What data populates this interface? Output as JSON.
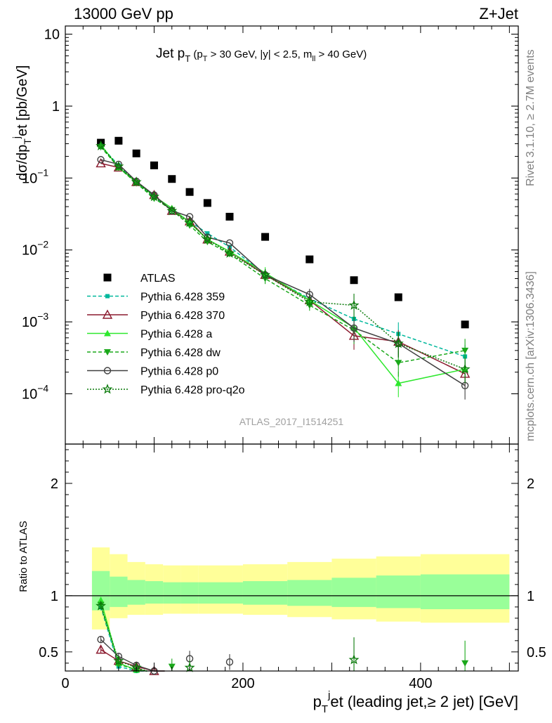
{
  "header": {
    "left": "13000 GeV pp",
    "right": "Z+Jet"
  },
  "side": {
    "rivet": "Rivet 3.1.10, ≥ 2.7M events",
    "mcplots": "mcplots.cern.ch [arXiv:1306.3436]"
  },
  "colors": {
    "atlas": "#000000",
    "p359": "#00b89c",
    "p370": "#8b1a2e",
    "pa": "#2ee82e",
    "pdw": "#1aa81a",
    "pp0": "#404040",
    "pq2o": "#0a7a0a",
    "band_inner": "#99ff99",
    "band_outer": "#ffff99"
  },
  "chart_data": [
    {
      "type": "line",
      "title": "Jet p_T (p_T > 30 GeV, |y| < 2.5, m_ll > 40 GeV)",
      "title_parts": {
        "main": "Jet p",
        "main_sub": "T",
        "open": " (p",
        "cut_sub": "T",
        "rest": " > 30 GeV, |y| < 2.5, m",
        "mll_sub": "ll",
        "end": " > 40 GeV)"
      },
      "ylabel": "dσ/dp_T^j et [pb/GeV]",
      "ylabel_parts": {
        "a": "dσ/dp",
        "sub": "T",
        "sup": "j",
        "b": "et [pb/GeV]"
      },
      "yscale": "log",
      "ylim": [
        2e-05,
        13
      ],
      "xlim": [
        0,
        510
      ],
      "y_ticks": [
        "10",
        "1",
        "10^-1",
        "10^-2",
        "10^-3",
        "10^-4"
      ],
      "y_tick_parts": [
        {
          "base": "10",
          "exp": ""
        },
        {
          "base": "1",
          "exp": ""
        },
        {
          "base": "10",
          "exp": "−1"
        },
        {
          "base": "10",
          "exp": "−2"
        },
        {
          "base": "10",
          "exp": "−3"
        },
        {
          "base": "10",
          "exp": "−4"
        }
      ],
      "watermark": "ATLAS_2017_I1514251",
      "legend_position": "lower-left",
      "x": [
        40,
        60,
        80,
        100,
        120,
        140,
        160,
        185,
        225,
        275,
        325,
        375,
        450
      ],
      "series": [
        {
          "name": "ATLAS",
          "key": "atlas",
          "marker": "square",
          "values": [
            0.31,
            0.33,
            0.22,
            0.15,
            0.097,
            0.064,
            0.045,
            0.029,
            0.0152,
            0.0074,
            0.0038,
            0.0022,
            0.00092
          ]
        },
        {
          "name": "Pythia 6.428 359",
          "key": "p359",
          "marker": "square-small",
          "dash": "5,3",
          "values": [
            0.28,
            0.15,
            0.087,
            0.055,
            0.036,
            0.025,
            0.017,
            0.011,
            0.0046,
            0.0021,
            0.0011,
            0.00068,
            0.00033
          ]
        },
        {
          "name": "Pythia 6.428 370",
          "key": "p370",
          "marker": "triangle-open",
          "dash": "",
          "values": [
            0.16,
            0.14,
            0.088,
            0.058,
            0.035,
            0.025,
            0.014,
            0.0095,
            0.0045,
            0.002,
            0.00064,
            0.00053,
            0.00019
          ]
        },
        {
          "name": "Pythia 6.428 a",
          "key": "pa",
          "marker": "triangle",
          "dash": "",
          "values": [
            0.29,
            0.14,
            0.088,
            0.056,
            0.038,
            0.024,
            0.014,
            0.0095,
            0.0048,
            0.002,
            0.00083,
            0.00014,
            0.00022
          ]
        },
        {
          "name": "Pythia 6.428 dw",
          "key": "pdw",
          "marker": "triangle-down",
          "dash": "5,3",
          "values": [
            0.27,
            0.14,
            0.085,
            0.052,
            0.036,
            0.022,
            0.013,
            0.0088,
            0.004,
            0.0017,
            0.00077,
            0.00027,
            0.0004
          ]
        },
        {
          "name": "Pythia 6.428 p0",
          "key": "pp0",
          "marker": "circle-open",
          "dash": "",
          "values": [
            0.18,
            0.155,
            0.09,
            0.058,
            0.035,
            0.029,
            0.015,
            0.0125,
            0.0045,
            0.0024,
            0.00082,
            0.0005,
            0.00013
          ]
        },
        {
          "name": "Pythia 6.428 pro-q2o",
          "key": "pq2o",
          "marker": "star",
          "dash": "2,2",
          "values": [
            0.28,
            0.145,
            0.088,
            0.055,
            0.035,
            0.024,
            0.014,
            0.009,
            0.0045,
            0.0019,
            0.0017,
            0.0005,
            0.00022
          ]
        }
      ]
    },
    {
      "type": "line",
      "ylabel": "Ratio to ATLAS",
      "xlabel": "p_T^j et (leading jet,≥ 2 jet) [GeV]",
      "xlabel_parts": {
        "a": "p",
        "sub": "T",
        "sup": "j",
        "b": "et (leading jet,≥ 2 jet) [GeV]"
      },
      "ylim": [
        0.33,
        2.35
      ],
      "xlim": [
        0,
        510
      ],
      "x_ticks": [
        "0",
        "200",
        "400"
      ],
      "y_ticks": [
        "0.5",
        "1",
        "2"
      ],
      "bands": {
        "bin_edges": [
          30,
          50,
          70,
          90,
          110,
          130,
          150,
          170,
          200,
          250,
          300,
          350,
          400,
          500
        ],
        "inner_up": [
          1.22,
          1.17,
          1.14,
          1.13,
          1.12,
          1.12,
          1.12,
          1.12,
          1.13,
          1.14,
          1.16,
          1.18,
          1.19
        ],
        "inner_down": [
          0.87,
          0.9,
          0.92,
          0.93,
          0.93,
          0.93,
          0.93,
          0.93,
          0.92,
          0.91,
          0.9,
          0.89,
          0.88
        ],
        "outer_up": [
          1.43,
          1.37,
          1.3,
          1.28,
          1.27,
          1.27,
          1.27,
          1.27,
          1.28,
          1.3,
          1.33,
          1.35,
          1.37
        ],
        "outer_down": [
          0.7,
          0.8,
          0.83,
          0.83,
          0.84,
          0.84,
          0.84,
          0.84,
          0.83,
          0.81,
          0.79,
          0.77,
          0.76
        ]
      },
      "series": [
        {
          "key": "p359",
          "x": [
            40,
            60,
            80
          ],
          "values": [
            0.9,
            0.37,
            0.33
          ]
        },
        {
          "key": "p370",
          "x": [
            40,
            60,
            80,
            100
          ],
          "values": [
            0.52,
            0.42,
            0.37,
            0.33
          ]
        },
        {
          "key": "pa",
          "x": [
            40,
            60,
            80
          ],
          "values": [
            0.96,
            0.4,
            0.34
          ]
        },
        {
          "key": "pdw",
          "x": [
            40,
            60,
            80,
            120,
            450
          ],
          "values": [
            0.92,
            0.39,
            0.34,
            0.37,
            0.4
          ]
        },
        {
          "key": "pp0",
          "x": [
            40,
            60,
            80,
            100,
            140,
            185
          ],
          "values": [
            0.61,
            0.46,
            0.38,
            0.33,
            0.44,
            0.41
          ]
        },
        {
          "key": "pq2o",
          "x": [
            40,
            60,
            80,
            140,
            325
          ],
          "values": [
            0.91,
            0.42,
            0.36,
            0.36,
            0.43
          ]
        }
      ]
    }
  ]
}
